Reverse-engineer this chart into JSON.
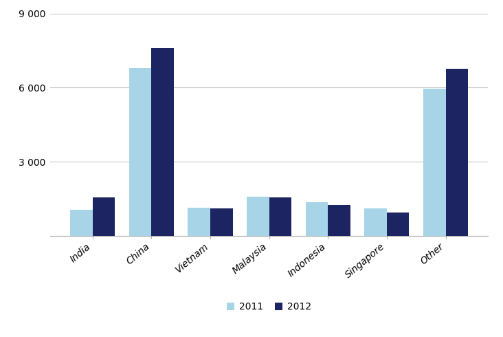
{
  "categories": [
    "India",
    "China",
    "Vietnam",
    "Malaysia",
    "Indonesia",
    "Singapore",
    "Other"
  ],
  "values_2011": [
    1050,
    6800,
    1150,
    1600,
    1350,
    1100,
    5950
  ],
  "values_2012": [
    1550,
    7600,
    1100,
    1550,
    1250,
    950,
    6750
  ],
  "color_2011": "#a8d4e8",
  "color_2012": "#1c2461",
  "ylim": [
    0,
    9000
  ],
  "yticks": [
    0,
    3000,
    6000,
    9000
  ],
  "ytick_labels": [
    "",
    "3 000",
    "6 000",
    "9 000"
  ],
  "legend_labels": [
    "2011",
    "2012"
  ],
  "bar_width": 0.38,
  "tick_fontsize": 10,
  "legend_fontsize": 10,
  "background_color": "#ffffff",
  "grid_color": "#c8c8c8"
}
